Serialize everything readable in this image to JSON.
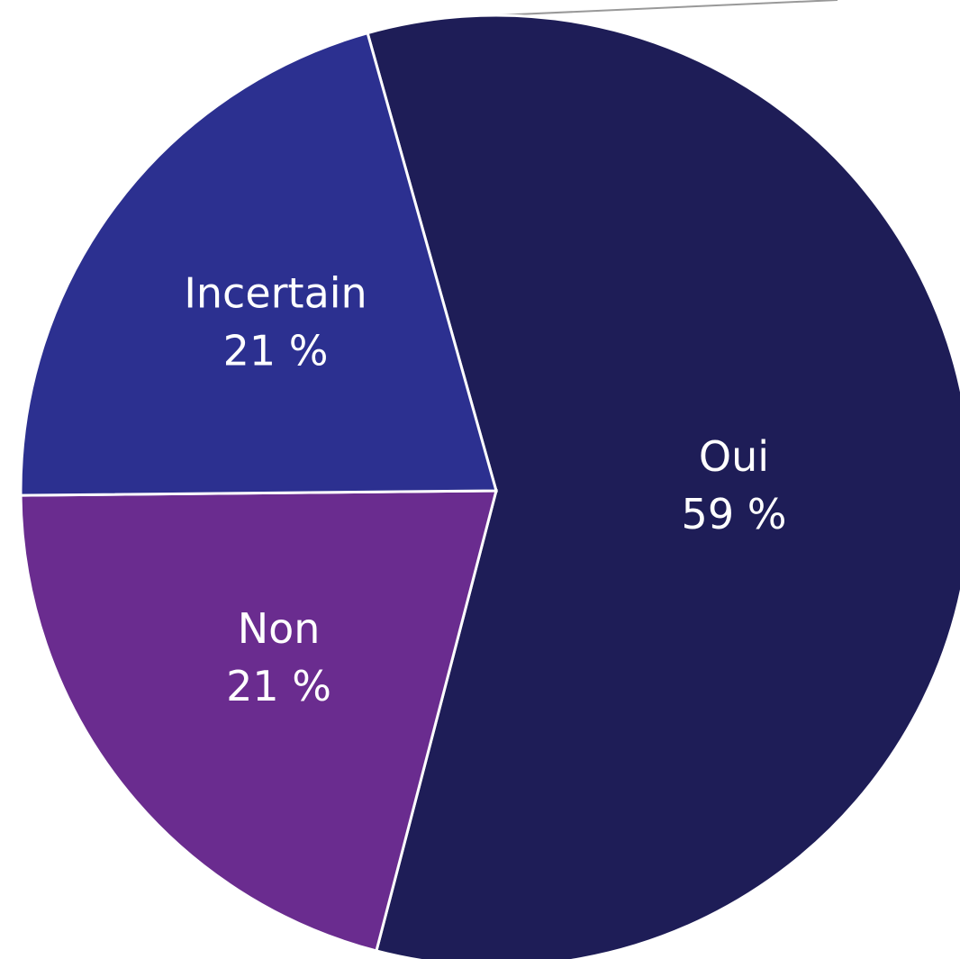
{
  "chart_data": {
    "type": "pie",
    "categories": [
      "Oui",
      "Non",
      "Incertain"
    ],
    "values": [
      59,
      21,
      21
    ],
    "value_labels": [
      "59 %",
      "21 %",
      "21 %"
    ],
    "colors": [
      "#1e1d57",
      "#6a2c8f",
      "#2c3090"
    ]
  }
}
